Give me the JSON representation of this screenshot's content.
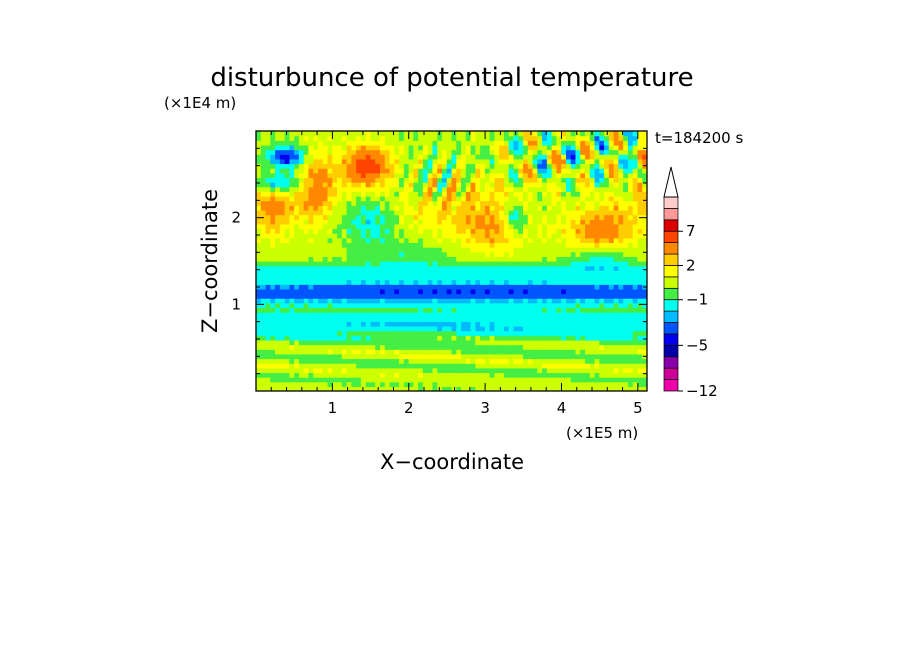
{
  "chart_data": {
    "type": "heatmap",
    "title": "disturbunce of potential temperature",
    "time_label": "t=184200 s",
    "xlabel": "X−coordinate",
    "ylabel": "Z−coordinate",
    "x_unit": "(×1E5 m)",
    "y_unit": "(×1E4 m)",
    "xlim": [
      0,
      5.12
    ],
    "ylim": [
      0,
      3.0
    ],
    "x_ticks": [
      {
        "v": 1,
        "label": "1"
      },
      {
        "v": 2,
        "label": "2"
      },
      {
        "v": 3,
        "label": "3"
      },
      {
        "v": 4,
        "label": "4"
      },
      {
        "v": 5,
        "label": "5"
      }
    ],
    "y_ticks": [
      {
        "v": 1,
        "label": "1"
      },
      {
        "v": 2,
        "label": "2"
      }
    ],
    "colorbar": {
      "levels": [
        -12,
        -11,
        -9,
        -7,
        -5,
        -4,
        -3,
        -2,
        -1,
        0,
        1,
        2,
        3,
        5,
        7,
        9,
        11
      ],
      "colors": [
        "#ee00aa",
        "#cc0099",
        "#8800aa",
        "#0000aa",
        "#0000ee",
        "#0055ff",
        "#00bbff",
        "#00ffee",
        "#44ee44",
        "#ccff00",
        "#ffff00",
        "#ffcc00",
        "#ff8800",
        "#ff4400",
        "#dd0000",
        "#ff9999",
        "#ffcccc"
      ],
      "tick_labels": [
        {
          "v": -12,
          "label": "−12"
        },
        {
          "v": -5,
          "label": "−5"
        },
        {
          "v": -1,
          "label": "−1"
        },
        {
          "v": 2,
          "label": "2"
        },
        {
          "v": 7,
          "label": "7"
        }
      ],
      "extend": "max"
    },
    "field_description": "Layered disturbance field: near-zero yellow/green near the ground, a negative blue band near z≈1.0×10^4 m, positive orange/red regions and alternating wave cells above z≈2×10^4 m"
  }
}
